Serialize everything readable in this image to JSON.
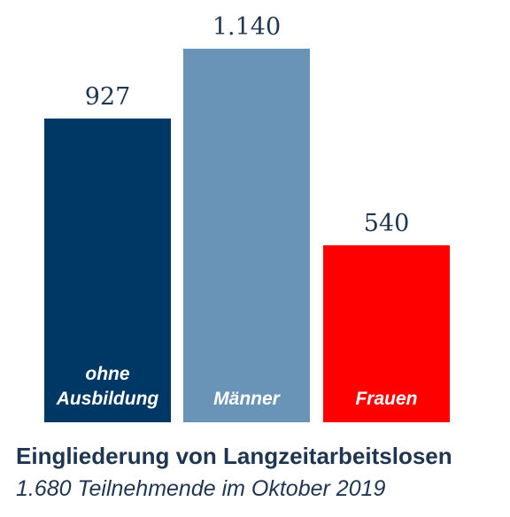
{
  "chart_data": {
    "type": "bar",
    "title": "Eingliederung von Langzeitarbeitslosen",
    "subtitle": "1.680 Teilnehmende im Oktober 2019",
    "categories": [
      [
        "ohne",
        "Ausbildung"
      ],
      [
        "Männer"
      ],
      [
        "Frauen"
      ]
    ],
    "values": [
      927,
      1140,
      540
    ],
    "value_labels": [
      "927",
      "1.140",
      "540"
    ],
    "colors": [
      "#003865",
      "#6a93b8",
      "#ff0000"
    ],
    "ylim": [
      0,
      1140
    ],
    "grid": false,
    "legend": "none"
  }
}
